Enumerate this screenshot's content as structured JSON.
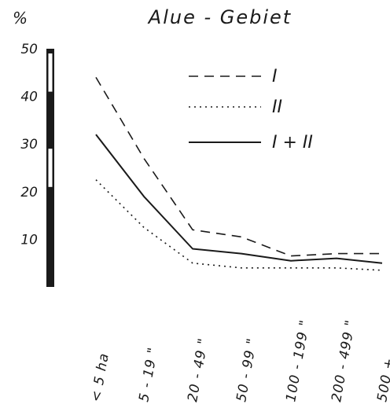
{
  "chart_data": {
    "type": "line",
    "title": "Alue - Gebiet",
    "ylabel": "%",
    "ylim": [
      0,
      50
    ],
    "yticks": [
      10,
      20,
      30,
      40,
      50
    ],
    "categories": [
      "< 5 ha",
      "5 - 19 \"",
      "20 - 49 \"",
      "50 - 99 \"",
      "100 - 199 \"",
      "200 - 499 \"",
      "500 +"
    ],
    "series": [
      {
        "name": "I",
        "style": "dashed",
        "values": [
          44,
          27,
          12,
          10.5,
          6.5,
          7,
          7
        ]
      },
      {
        "name": "II",
        "style": "dotted",
        "values": [
          22.5,
          12.5,
          5,
          4,
          4,
          4,
          3.5
        ]
      },
      {
        "name": "I + II",
        "style": "solid",
        "values": [
          32,
          19,
          8,
          7,
          5.5,
          6,
          5
        ]
      }
    ],
    "grid": false,
    "legend_position": "top-right",
    "colors": {
      "ink": "#1a1a1a",
      "background": "#ffffff"
    }
  }
}
